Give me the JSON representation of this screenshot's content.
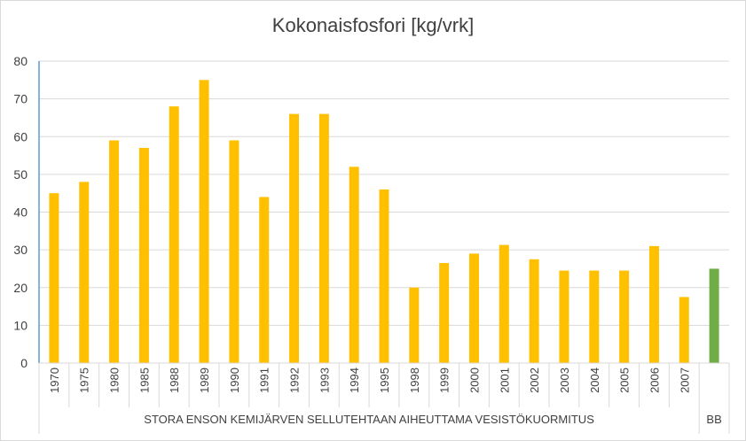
{
  "chart_data": {
    "type": "bar",
    "title": "Kokonaisfosfori  [kg/vrk]",
    "ylim": [
      0,
      80
    ],
    "yticks": [
      "0",
      "10",
      "20",
      "30",
      "40",
      "50",
      "60",
      "70",
      "80"
    ],
    "grid": true,
    "categories": [
      "1970",
      "1975",
      "1980",
      "1985",
      "1988",
      "1989",
      "1990",
      "1991",
      "1992",
      "1993",
      "1994",
      "1995",
      "1998",
      "1999",
      "2000",
      "2001",
      "2002",
      "2003",
      "2004",
      "2005",
      "2006",
      "2007",
      ""
    ],
    "values": [
      45,
      48,
      59,
      57,
      68,
      75,
      59,
      44,
      66,
      66,
      52,
      46,
      20,
      26.5,
      29,
      31.3,
      27.5,
      24.5,
      24.5,
      24.5,
      31,
      17.5,
      25
    ],
    "groups": [
      {
        "label": "STORA ENSON KEMIJÄRVEN SELLUTEHTAAN AIHEUTTAMA VESISTÖKUORMITUS",
        "count": 22
      },
      {
        "label": "BB",
        "count": 1
      }
    ],
    "colors": {
      "main": "#ffc000",
      "bb": "#70ad47",
      "grid": "#d9d9d9",
      "axis": "#d9d9d9",
      "yaxis_highlight": "#5b9bd5"
    }
  }
}
